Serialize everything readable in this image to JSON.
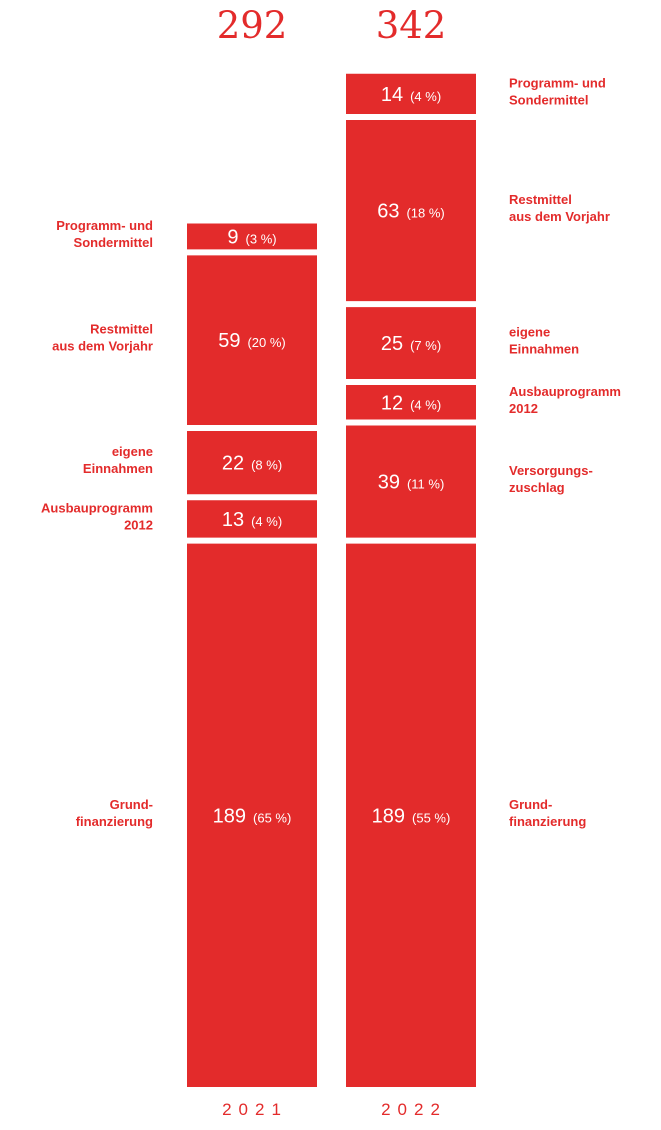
{
  "chart_data": {
    "type": "bar",
    "stacked": true,
    "unit": "",
    "colors": {
      "bar": "#e32b2b",
      "text": "#e32b2b",
      "inside_text": "#ffffff"
    },
    "categories": [
      "2021",
      "2022"
    ],
    "totals": [
      "292",
      "342"
    ],
    "bars": [
      {
        "year": "2021",
        "total": 292,
        "segments": [
          {
            "label": [
              "Grund-",
              "finanzierung"
            ],
            "value": 189,
            "pct": "(65 %)"
          },
          {
            "label": [
              "Ausbauprogramm",
              "2012"
            ],
            "value": 13,
            "pct": "(4 %)"
          },
          {
            "label": [
              "eigene",
              "Einnahmen"
            ],
            "value": 22,
            "pct": "(8 %)"
          },
          {
            "label": [
              "Restmittel",
              "aus dem Vorjahr"
            ],
            "value": 59,
            "pct": "(20 %)"
          },
          {
            "label": [
              "Programm- und",
              "Sondermittel"
            ],
            "value": 9,
            "pct": "(3 %)"
          }
        ]
      },
      {
        "year": "2022",
        "total": 342,
        "segments": [
          {
            "label": [
              "Grund-",
              "finanzierung"
            ],
            "value": 189,
            "pct": "(55 %)"
          },
          {
            "label": [
              "Versorgungs-",
              "zuschlag"
            ],
            "value": 39,
            "pct": "(11 %)"
          },
          {
            "label": [
              "Ausbauprogramm",
              "2012"
            ],
            "value": 12,
            "pct": "(4 %)"
          },
          {
            "label": [
              "eigene",
              "Einnahmen"
            ],
            "value": 25,
            "pct": "(7 %)"
          },
          {
            "label": [
              "Restmittel",
              "aus dem Vorjahr"
            ],
            "value": 63,
            "pct": "(18 %)"
          },
          {
            "label": [
              "Programm- und",
              "Sondermittel"
            ],
            "value": 14,
            "pct": "(4 %)"
          }
        ]
      }
    ]
  }
}
